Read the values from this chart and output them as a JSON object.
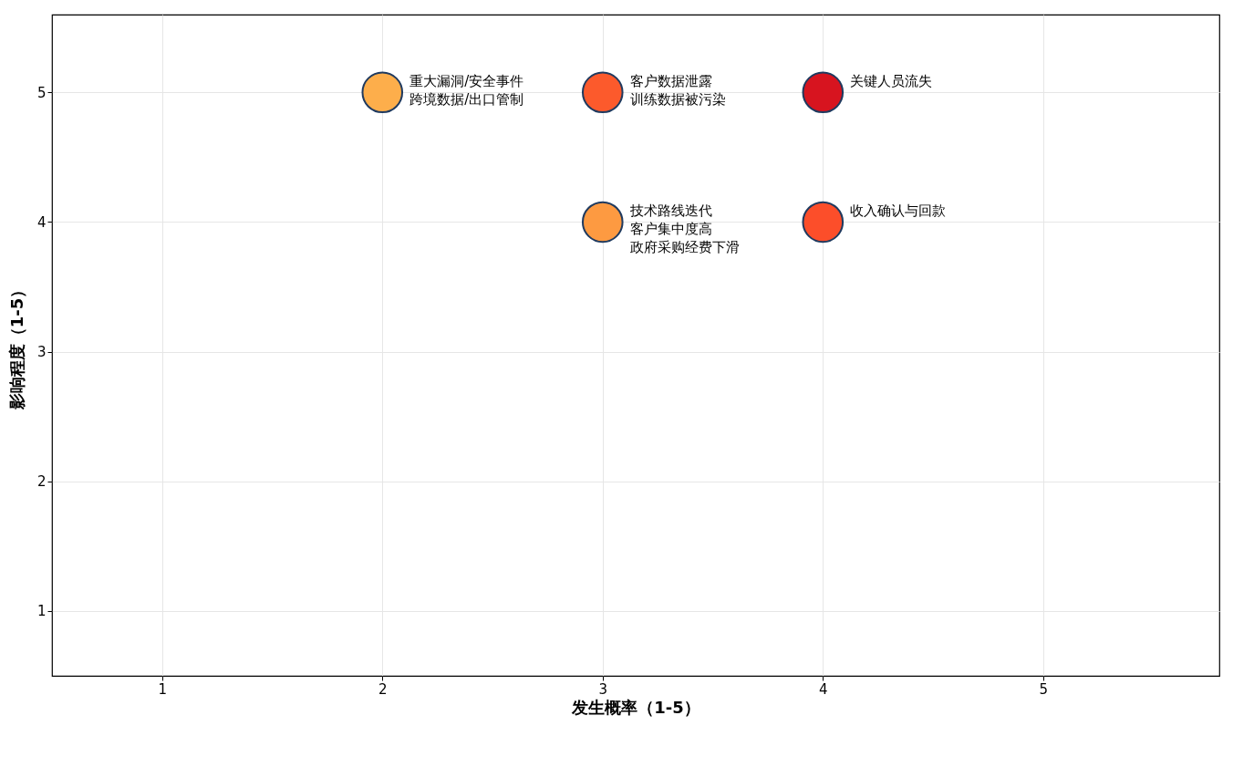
{
  "chart_data": {
    "type": "scatter",
    "xlabel": "发生概率（1-5）",
    "ylabel": "影响程度（1-5）",
    "x": [
      2,
      3,
      4,
      3,
      4
    ],
    "values": [
      5,
      5,
      5,
      4,
      4
    ],
    "colors": [
      "#fdae4b",
      "#fc5a2c",
      "#d7141f",
      "#fd9a41",
      "#fc4e2a"
    ],
    "marker": "circle",
    "grid": true,
    "legend": false,
    "xlim": [
      0.5,
      5.8
    ],
    "xticks": [
      1,
      2,
      3,
      4,
      5
    ],
    "ylim": [
      0.5,
      5.6
    ],
    "yticks": [
      1,
      2,
      3,
      4,
      5
    ],
    "annotations": [
      {
        "text": "重大漏洞/安全事件",
        "x": 2,
        "y": 5
      },
      {
        "text": "跨境数据/出口管制",
        "x": 2,
        "y": 5
      },
      {
        "text": "客户数据泄露",
        "x": 3,
        "y": 5
      },
      {
        "text": "训练数据被污染",
        "x": 3,
        "y": 5
      },
      {
        "text": "关键人员流失",
        "x": 4,
        "y": 5
      },
      {
        "text": "技术路线迭代",
        "x": 3,
        "y": 4
      },
      {
        "text": "客户集中度高",
        "x": 3,
        "y": 4
      },
      {
        "text": "政府采购经费下滑",
        "x": 3,
        "y": 4
      },
      {
        "text": "收入确认与回款",
        "x": 4,
        "y": 4
      }
    ]
  }
}
